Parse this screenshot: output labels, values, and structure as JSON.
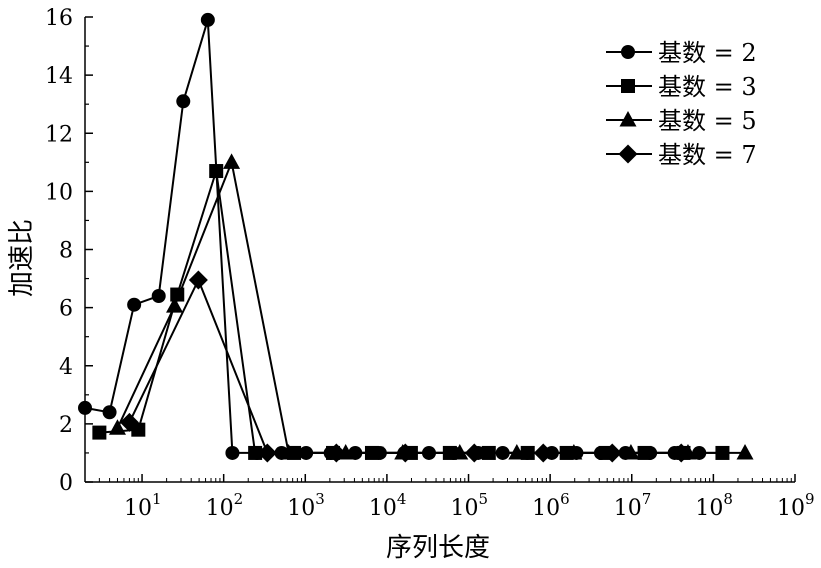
{
  "chart_data": {
    "type": "line",
    "xlabel": "序列长度",
    "ylabel": "加速比",
    "xscale": "log",
    "xlim": [
      2,
      1000000000
    ],
    "ylim": [
      0,
      16
    ],
    "xticks": [
      {
        "value": 10,
        "base": "10",
        "exp": "1"
      },
      {
        "value": 100,
        "base": "10",
        "exp": "2"
      },
      {
        "value": 1000,
        "base": "10",
        "exp": "3"
      },
      {
        "value": 10000,
        "base": "10",
        "exp": "4"
      },
      {
        "value": 100000,
        "base": "10",
        "exp": "5"
      },
      {
        "value": 1000000,
        "base": "10",
        "exp": "6"
      },
      {
        "value": 10000000,
        "base": "10",
        "exp": "7"
      },
      {
        "value": 100000000,
        "base": "10",
        "exp": "8"
      },
      {
        "value": 1000000000,
        "base": "10",
        "exp": "9"
      }
    ],
    "yticks": [
      "0",
      "2",
      "4",
      "6",
      "8",
      "10",
      "12",
      "14",
      "16"
    ],
    "legend_position": "top-right",
    "series": [
      {
        "name": "基数 = 2",
        "marker": "circle",
        "x": [
          2,
          4,
          8,
          16,
          32,
          64,
          128,
          256,
          512,
          1024,
          2048,
          4096,
          8192,
          16384,
          32768,
          65536,
          131072,
          262144,
          524288,
          1048576,
          2097152,
          4194304,
          8388608,
          16777216,
          33554432,
          67108864
        ],
        "y": [
          2.55,
          2.4,
          6.1,
          6.4,
          13.1,
          15.9,
          1.0,
          1.0,
          1.0,
          1.0,
          1.0,
          1.0,
          1.0,
          1.0,
          1.0,
          1.0,
          1.0,
          1.0,
          1.0,
          1.0,
          1.0,
          1.0,
          1.0,
          1.0,
          1.0,
          1.0
        ]
      },
      {
        "name": "基数 = 3",
        "marker": "square",
        "x": [
          3,
          9,
          27,
          81,
          243,
          729,
          2187,
          6561,
          19683,
          59049,
          177147,
          531441,
          1594323,
          4782969,
          14348907,
          43046721,
          129140163
        ],
        "y": [
          1.7,
          1.8,
          6.45,
          10.7,
          1.0,
          1.0,
          1.0,
          1.0,
          1.0,
          1.0,
          1.0,
          1.0,
          1.0,
          1.0,
          1.0,
          1.0,
          1.0
        ]
      },
      {
        "name": "基数 = 5",
        "marker": "triangle",
        "x": [
          5,
          25,
          125,
          625,
          3125,
          15625,
          78125,
          390625,
          1953125,
          9765625,
          48828125,
          244140625
        ],
        "y": [
          1.85,
          6.05,
          11.0,
          1.0,
          1.0,
          1.0,
          1.0,
          1.0,
          1.0,
          1.0,
          1.0,
          1.0
        ]
      },
      {
        "name": "基数 = 7",
        "marker": "diamond",
        "x": [
          7,
          49,
          343,
          2401,
          16807,
          117649,
          823543,
          5764801,
          40353607
        ],
        "y": [
          2.05,
          6.95,
          1.0,
          1.0,
          1.0,
          1.0,
          1.0,
          1.0,
          1.0
        ]
      }
    ]
  }
}
